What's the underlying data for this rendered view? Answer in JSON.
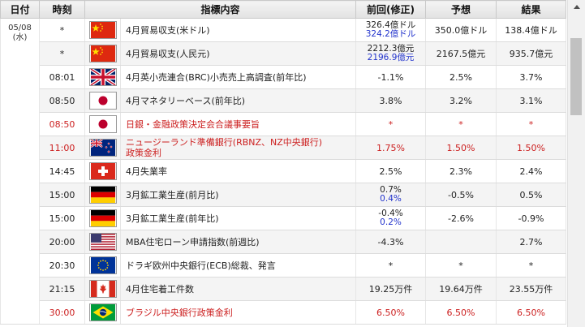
{
  "headers": {
    "date": "日付",
    "time": "時刻",
    "indicator": "指標内容",
    "previous": "前回(修正)",
    "forecast": "予想",
    "result": "結果"
  },
  "date": {
    "line1": "05/08",
    "line2": "(水)"
  },
  "rows": [
    {
      "time": "*",
      "flag": "china",
      "indicator": "4月貿易収支(米ドル)",
      "previous": "326.4億ドル",
      "previous_revised": "324.2億ドル",
      "forecast": "350.0億ドル",
      "result": "138.4億ドル",
      "red": false
    },
    {
      "time": "*",
      "flag": "china",
      "indicator": "4月貿易収支(人民元)",
      "previous": "2212.3億元",
      "previous_revised": "2196.9億元",
      "forecast": "2167.5億元",
      "result": "935.7億元",
      "red": false
    },
    {
      "time": "08:01",
      "flag": "uk",
      "indicator": "4月英小売連合(BRC)小売売上高調査(前年比)",
      "previous": "-1.1%",
      "forecast": "2.5%",
      "result": "3.7%",
      "red": false
    },
    {
      "time": "08:50",
      "flag": "japan",
      "indicator": "4月マネタリーベース(前年比)",
      "previous": "3.8%",
      "forecast": "3.2%",
      "result": "3.1%",
      "red": false
    },
    {
      "time": "08:50",
      "flag": "japan",
      "indicator": "日銀・金融政策決定会合議事要旨",
      "previous": "*",
      "forecast": "*",
      "result": "*",
      "red": true
    },
    {
      "time": "11:00",
      "flag": "nz",
      "indicator": "ニュージーランド準備銀行(RBNZ、NZ中央銀行)",
      "indicator2": "政策金利",
      "previous": "1.75%",
      "forecast": "1.50%",
      "result": "1.50%",
      "red": true
    },
    {
      "time": "14:45",
      "flag": "swiss",
      "indicator": "4月失業率",
      "previous": "2.5%",
      "forecast": "2.3%",
      "result": "2.4%",
      "red": false
    },
    {
      "time": "15:00",
      "flag": "germany",
      "indicator": "3月鉱工業生産(前月比)",
      "previous": "0.7%",
      "previous_revised": "0.4%",
      "forecast": "-0.5%",
      "result": "0.5%",
      "red": false
    },
    {
      "time": "15:00",
      "flag": "germany",
      "indicator": "3月鉱工業生産(前年比)",
      "previous": "-0.4%",
      "previous_revised": "0.2%",
      "forecast": "-2.6%",
      "result": "-0.9%",
      "red": false
    },
    {
      "time": "20:00",
      "flag": "usa",
      "indicator": "MBA住宅ローン申請指数(前週比)",
      "previous": "-4.3%",
      "forecast": "",
      "result": "2.7%",
      "red": false
    },
    {
      "time": "20:30",
      "flag": "eu",
      "indicator": "ドラギ欧州中央銀行(ECB)総裁、発言",
      "previous": "*",
      "forecast": "*",
      "result": "*",
      "red": false
    },
    {
      "time": "21:15",
      "flag": "canada",
      "indicator": "4月住宅着工件数",
      "previous": "19.25万件",
      "forecast": "19.64万件",
      "result": "23.55万件",
      "red": false
    },
    {
      "time": "30:00",
      "flag": "brazil",
      "indicator": "ブラジル中央銀行政策金利",
      "previous": "6.50%",
      "forecast": "6.50%",
      "result": "6.50%",
      "red": true
    }
  ]
}
